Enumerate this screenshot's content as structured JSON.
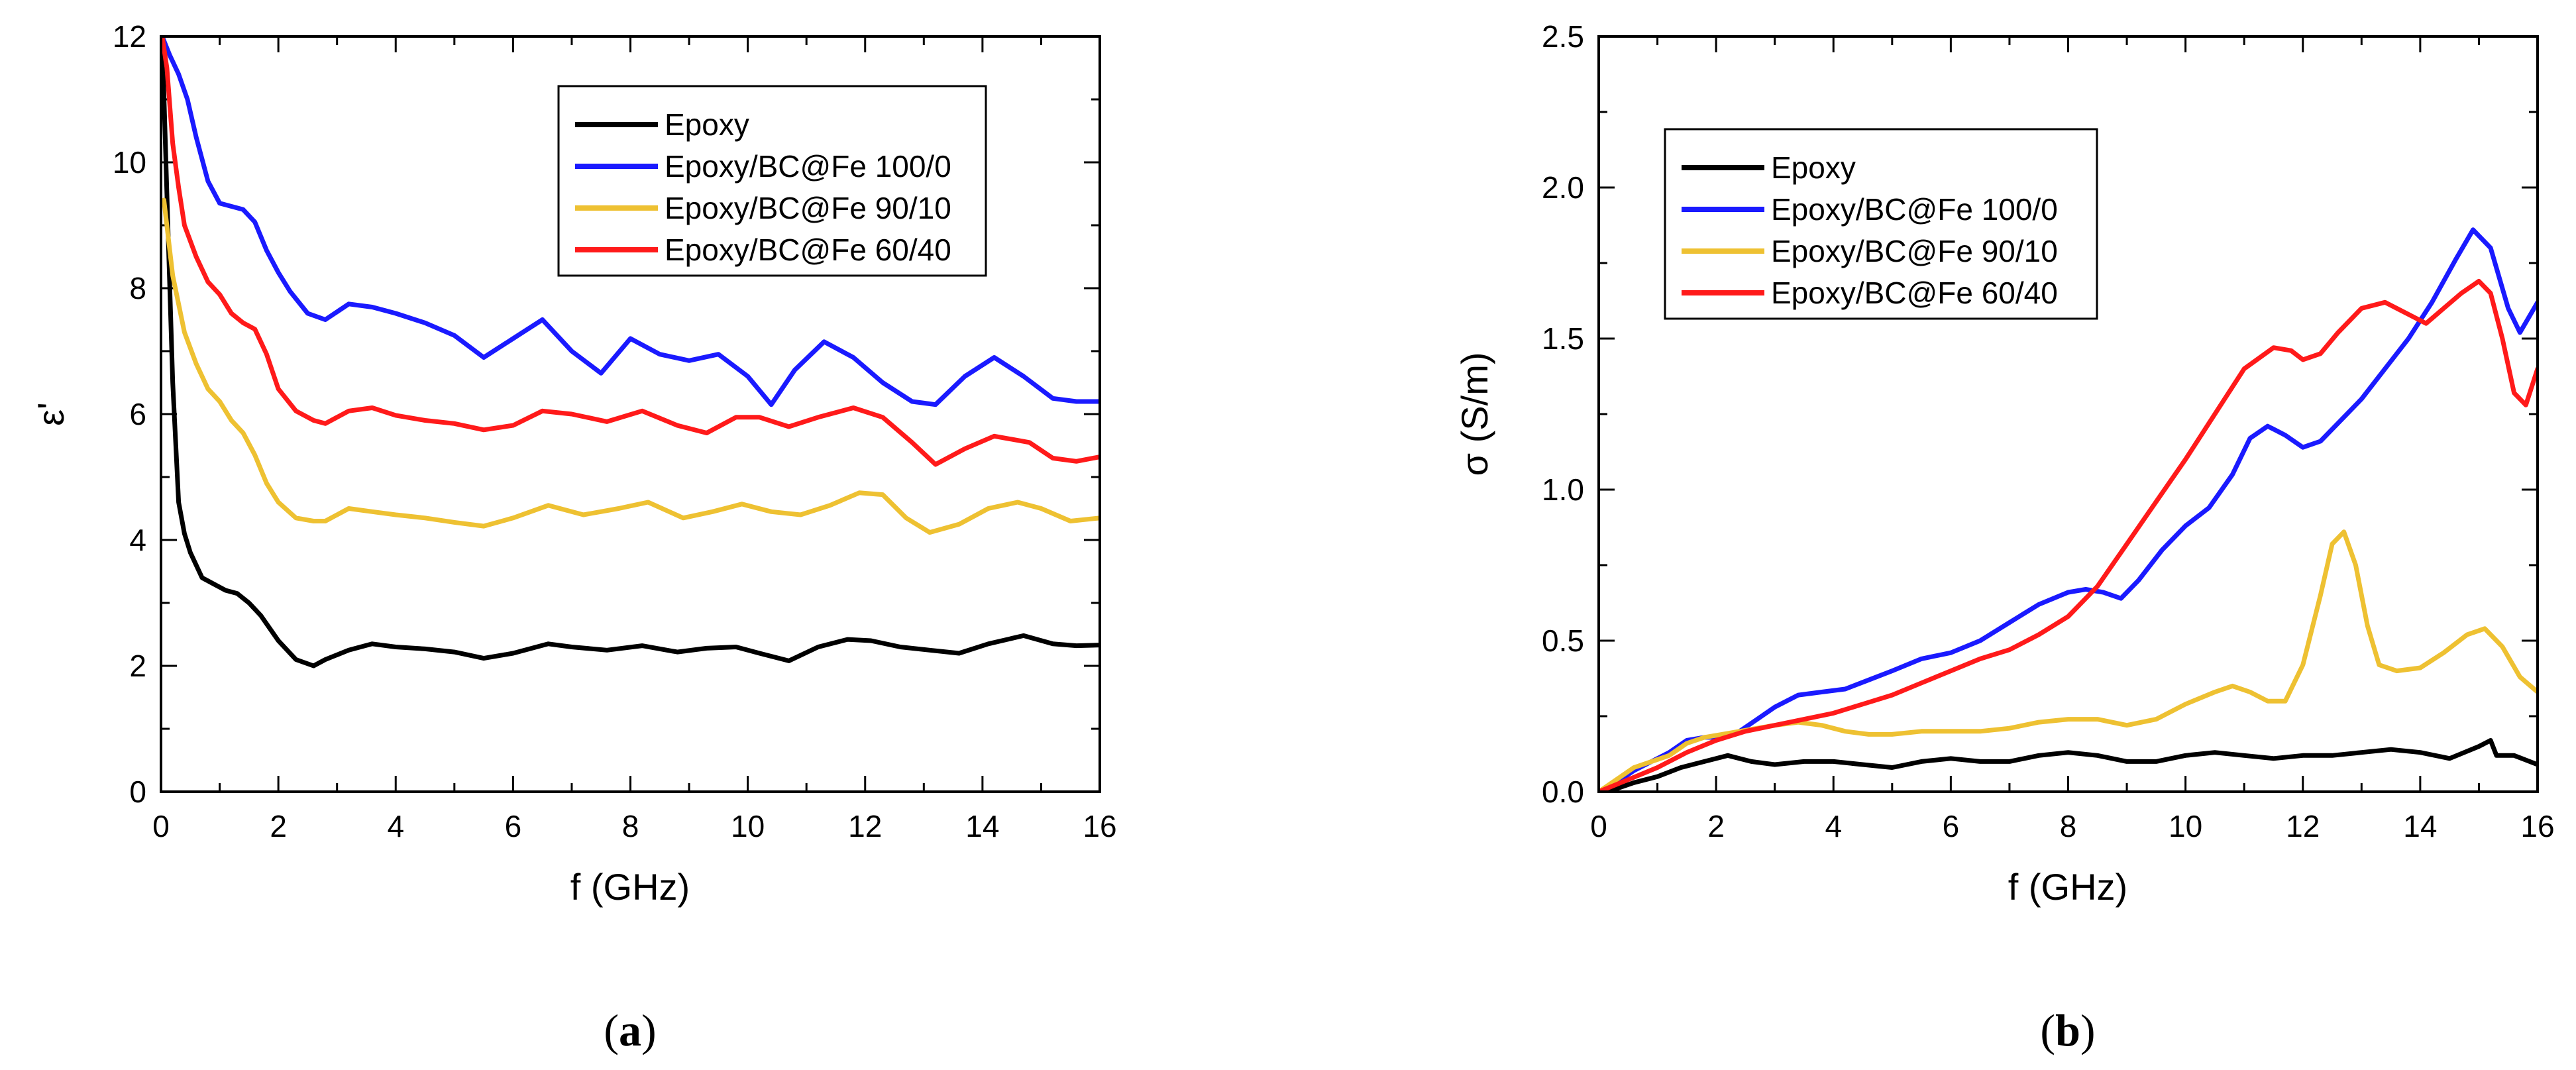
{
  "colors": {
    "epoxy": "#000000",
    "bc100": "#1a1aff",
    "bc90": "#eec132",
    "bc60": "#ff1a1a"
  },
  "chart_data": [
    {
      "type": "line",
      "panel_label": "a",
      "title": "",
      "xlabel": "f (GHz)",
      "ylabel": "ε'",
      "xlim": [
        0,
        16
      ],
      "ylim": [
        0,
        12
      ],
      "xticks": [
        0,
        2,
        4,
        6,
        8,
        10,
        12,
        14,
        16
      ],
      "yticks": [
        0,
        2,
        4,
        6,
        8,
        10,
        12
      ],
      "legend_position": "top-right",
      "series": [
        {
          "name": "Epoxy",
          "color": "#000000",
          "x": [
            0.02,
            0.1,
            0.2,
            0.3,
            0.4,
            0.5,
            0.7,
            0.9,
            1.1,
            1.3,
            1.5,
            1.7,
            2.0,
            2.3,
            2.6,
            2.8,
            3.2,
            3.6,
            4.0,
            4.5,
            5.0,
            5.5,
            6.0,
            6.6,
            7.0,
            7.6,
            8.2,
            8.8,
            9.3,
            9.8,
            10.2,
            10.7,
            11.2,
            11.7,
            12.1,
            12.6,
            13.1,
            13.6,
            14.1,
            14.7,
            15.2,
            15.6,
            16.0
          ],
          "y": [
            12,
            9.5,
            6.5,
            4.6,
            4.1,
            3.8,
            3.4,
            3.3,
            3.2,
            3.15,
            3.0,
            2.8,
            2.4,
            2.1,
            2.0,
            2.1,
            2.25,
            2.35,
            2.3,
            2.27,
            2.22,
            2.12,
            2.2,
            2.35,
            2.3,
            2.25,
            2.32,
            2.22,
            2.28,
            2.3,
            2.2,
            2.08,
            2.3,
            2.42,
            2.4,
            2.3,
            2.25,
            2.2,
            2.35,
            2.48,
            2.35,
            2.32,
            2.33
          ]
        },
        {
          "name": "Epoxy/BC@Fe 100/0",
          "color": "#1a1aff",
          "x": [
            0.02,
            0.15,
            0.3,
            0.45,
            0.6,
            0.8,
            1.0,
            1.2,
            1.4,
            1.6,
            1.8,
            2.0,
            2.2,
            2.5,
            2.8,
            3.2,
            3.6,
            4.0,
            4.5,
            5.0,
            5.5,
            6.0,
            6.5,
            7.0,
            7.5,
            8.0,
            8.5,
            9.0,
            9.5,
            10.0,
            10.4,
            10.8,
            11.3,
            11.8,
            12.3,
            12.8,
            13.2,
            13.7,
            14.2,
            14.7,
            15.2,
            15.6,
            16.0
          ],
          "y": [
            12,
            11.7,
            11.4,
            11.0,
            10.4,
            9.7,
            9.35,
            9.3,
            9.25,
            9.05,
            8.6,
            8.25,
            7.95,
            7.6,
            7.5,
            7.75,
            7.7,
            7.6,
            7.45,
            7.25,
            6.9,
            7.2,
            7.5,
            7.0,
            6.65,
            7.2,
            6.95,
            6.85,
            6.95,
            6.6,
            6.15,
            6.7,
            7.15,
            6.9,
            6.5,
            6.2,
            6.15,
            6.6,
            6.9,
            6.6,
            6.25,
            6.2,
            6.2
          ]
        },
        {
          "name": "Epoxy/BC@Fe 90/10",
          "color": "#eec132",
          "x": [
            0.05,
            0.2,
            0.4,
            0.6,
            0.8,
            1.0,
            1.2,
            1.4,
            1.6,
            1.8,
            2.0,
            2.3,
            2.6,
            2.8,
            3.2,
            3.6,
            4.0,
            4.5,
            5.0,
            5.5,
            6.0,
            6.6,
            7.2,
            7.8,
            8.3,
            8.9,
            9.4,
            9.9,
            10.4,
            10.9,
            11.4,
            11.9,
            12.3,
            12.7,
            13.1,
            13.6,
            14.1,
            14.6,
            15.0,
            15.5,
            16.0
          ],
          "y": [
            9.4,
            8.2,
            7.3,
            6.8,
            6.4,
            6.2,
            5.9,
            5.7,
            5.35,
            4.9,
            4.6,
            4.35,
            4.3,
            4.3,
            4.5,
            4.45,
            4.4,
            4.35,
            4.28,
            4.22,
            4.35,
            4.55,
            4.4,
            4.5,
            4.6,
            4.35,
            4.45,
            4.57,
            4.45,
            4.4,
            4.55,
            4.75,
            4.72,
            4.35,
            4.12,
            4.25,
            4.5,
            4.6,
            4.5,
            4.3,
            4.35
          ]
        },
        {
          "name": "Epoxy/BC@Fe 60/40",
          "color": "#ff1a1a",
          "x": [
            0.02,
            0.1,
            0.2,
            0.3,
            0.4,
            0.6,
            0.8,
            1.0,
            1.2,
            1.4,
            1.6,
            1.8,
            2.0,
            2.3,
            2.6,
            2.8,
            3.2,
            3.6,
            4.0,
            4.5,
            5.0,
            5.5,
            6.0,
            6.5,
            7.0,
            7.6,
            8.2,
            8.8,
            9.3,
            9.8,
            10.2,
            10.7,
            11.2,
            11.8,
            12.3,
            12.8,
            13.2,
            13.7,
            14.2,
            14.8,
            15.2,
            15.6,
            16.0
          ],
          "y": [
            12,
            11.5,
            10.3,
            9.6,
            9.0,
            8.5,
            8.1,
            7.9,
            7.6,
            7.45,
            7.35,
            6.95,
            6.4,
            6.05,
            5.9,
            5.85,
            6.05,
            6.1,
            5.98,
            5.9,
            5.85,
            5.75,
            5.82,
            6.05,
            6.0,
            5.88,
            6.05,
            5.82,
            5.7,
            5.95,
            5.95,
            5.8,
            5.95,
            6.1,
            5.95,
            5.55,
            5.2,
            5.45,
            5.65,
            5.55,
            5.3,
            5.25,
            5.32
          ]
        }
      ]
    },
    {
      "type": "line",
      "panel_label": "b",
      "title": "",
      "xlabel": "f (GHz)",
      "ylabel": "σ (S/m)",
      "xlim": [
        0,
        16
      ],
      "ylim": [
        0,
        2.5
      ],
      "xticks": [
        0,
        2,
        4,
        6,
        8,
        10,
        12,
        14,
        16
      ],
      "yticks": [
        0.0,
        0.5,
        1.0,
        1.5,
        2.0,
        2.5
      ],
      "ytick_labels": [
        "0.0",
        "0.5",
        "1.0",
        "1.5",
        "2.0",
        "2.5"
      ],
      "legend_position": "top-left",
      "series": [
        {
          "name": "Epoxy",
          "color": "#000000",
          "x": [
            0.0,
            0.3,
            0.6,
            1.0,
            1.4,
            1.8,
            2.2,
            2.6,
            3.0,
            3.5,
            4.0,
            4.5,
            5.0,
            5.5,
            6.0,
            6.5,
            7.0,
            7.5,
            8.0,
            8.5,
            9.0,
            9.5,
            10.0,
            10.5,
            11.0,
            11.5,
            12.0,
            12.5,
            13.0,
            13.5,
            14.0,
            14.5,
            15.0,
            15.2,
            15.3,
            15.6,
            16.0
          ],
          "y": [
            0.0,
            0.01,
            0.03,
            0.05,
            0.08,
            0.1,
            0.12,
            0.1,
            0.09,
            0.1,
            0.1,
            0.09,
            0.08,
            0.1,
            0.11,
            0.1,
            0.1,
            0.12,
            0.13,
            0.12,
            0.1,
            0.1,
            0.12,
            0.13,
            0.12,
            0.11,
            0.12,
            0.12,
            0.13,
            0.14,
            0.13,
            0.11,
            0.15,
            0.17,
            0.12,
            0.12,
            0.09
          ]
        },
        {
          "name": "Epoxy/BC@Fe 100/0",
          "color": "#1a1aff",
          "x": [
            0.0,
            0.3,
            0.6,
            0.9,
            1.2,
            1.5,
            1.8,
            2.1,
            2.4,
            2.7,
            3.0,
            3.4,
            3.8,
            4.2,
            4.6,
            5.0,
            5.5,
            6.0,
            6.5,
            7.0,
            7.5,
            8.0,
            8.3,
            8.6,
            8.9,
            9.2,
            9.6,
            10.0,
            10.4,
            10.8,
            11.1,
            11.4,
            11.7,
            12.0,
            12.3,
            12.6,
            13.0,
            13.4,
            13.8,
            14.2,
            14.6,
            14.9,
            15.2,
            15.5,
            15.7,
            16.0
          ],
          "y": [
            0.0,
            0.03,
            0.07,
            0.1,
            0.13,
            0.17,
            0.18,
            0.18,
            0.2,
            0.24,
            0.28,
            0.32,
            0.33,
            0.34,
            0.37,
            0.4,
            0.44,
            0.46,
            0.5,
            0.56,
            0.62,
            0.66,
            0.67,
            0.66,
            0.64,
            0.7,
            0.8,
            0.88,
            0.94,
            1.05,
            1.17,
            1.21,
            1.18,
            1.14,
            1.16,
            1.22,
            1.3,
            1.4,
            1.5,
            1.62,
            1.76,
            1.86,
            1.8,
            1.6,
            1.52,
            1.62
          ]
        },
        {
          "name": "Epoxy/BC@Fe 90/10",
          "color": "#eec132",
          "x": [
            0.0,
            0.3,
            0.6,
            0.9,
            1.2,
            1.5,
            1.8,
            2.1,
            2.4,
            2.7,
            3.0,
            3.4,
            3.8,
            4.2,
            4.6,
            5.0,
            5.5,
            6.0,
            6.5,
            7.0,
            7.5,
            8.0,
            8.5,
            9.0,
            9.5,
            10.0,
            10.5,
            10.8,
            11.1,
            11.4,
            11.7,
            12.0,
            12.3,
            12.5,
            12.7,
            12.9,
            13.1,
            13.3,
            13.6,
            14.0,
            14.4,
            14.8,
            15.1,
            15.4,
            15.7,
            16.0
          ],
          "y": [
            0.0,
            0.04,
            0.08,
            0.1,
            0.12,
            0.16,
            0.18,
            0.19,
            0.2,
            0.21,
            0.22,
            0.23,
            0.22,
            0.2,
            0.19,
            0.19,
            0.2,
            0.2,
            0.2,
            0.21,
            0.23,
            0.24,
            0.24,
            0.22,
            0.24,
            0.29,
            0.33,
            0.35,
            0.33,
            0.3,
            0.3,
            0.42,
            0.65,
            0.82,
            0.86,
            0.75,
            0.55,
            0.42,
            0.4,
            0.41,
            0.46,
            0.52,
            0.54,
            0.48,
            0.38,
            0.33
          ]
        },
        {
          "name": "Epoxy/BC@Fe 60/40",
          "color": "#ff1a1a",
          "x": [
            0.0,
            0.5,
            1.0,
            1.5,
            2.0,
            2.5,
            3.0,
            3.5,
            4.0,
            4.5,
            5.0,
            5.5,
            6.0,
            6.5,
            7.0,
            7.5,
            8.0,
            8.5,
            9.0,
            9.5,
            10.0,
            10.5,
            11.0,
            11.5,
            11.8,
            12.0,
            12.3,
            12.6,
            13.0,
            13.4,
            13.8,
            14.1,
            14.4,
            14.7,
            15.0,
            15.2,
            15.4,
            15.6,
            15.8,
            16.0
          ],
          "y": [
            0.0,
            0.04,
            0.08,
            0.13,
            0.17,
            0.2,
            0.22,
            0.24,
            0.26,
            0.29,
            0.32,
            0.36,
            0.4,
            0.44,
            0.47,
            0.52,
            0.58,
            0.68,
            0.82,
            0.96,
            1.1,
            1.25,
            1.4,
            1.47,
            1.46,
            1.43,
            1.45,
            1.52,
            1.6,
            1.62,
            1.58,
            1.55,
            1.6,
            1.65,
            1.69,
            1.65,
            1.5,
            1.32,
            1.28,
            1.4
          ]
        }
      ]
    }
  ]
}
